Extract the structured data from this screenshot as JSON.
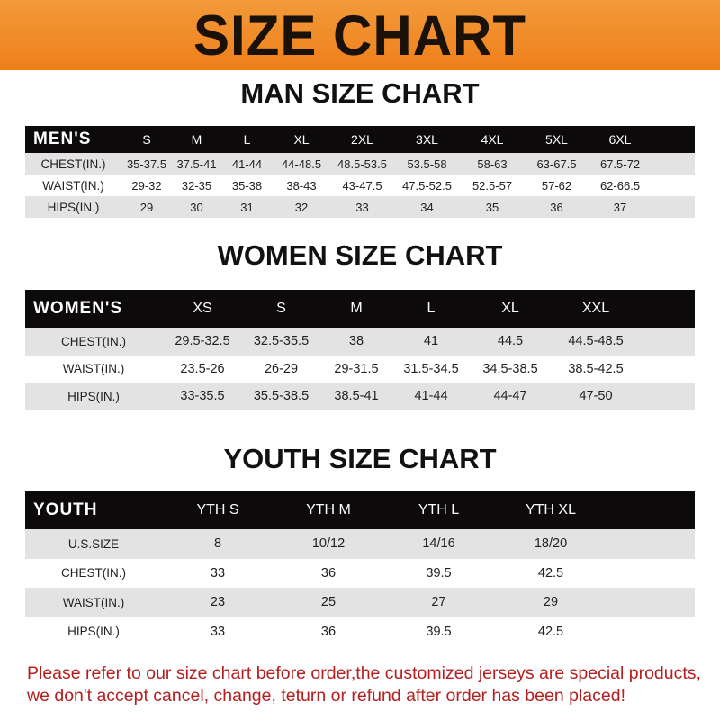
{
  "banner": "SIZE CHART",
  "man": {
    "title": "MAN SIZE CHART",
    "header": [
      "MEN'S",
      "S",
      "M",
      "L",
      "XL",
      "2XL",
      "3XL",
      "4XL",
      "5XL",
      "6XL"
    ],
    "rows": [
      [
        "CHEST(IN.)",
        "35-37.5",
        "37.5-41",
        "41-44",
        "44-48.5",
        "48.5-53.5",
        "53.5-58",
        "58-63",
        "63-67.5",
        "67.5-72"
      ],
      [
        "WAIST(IN.)",
        "29-32",
        "32-35",
        "35-38",
        "38-43",
        "43-47.5",
        "47.5-52.5",
        "52.5-57",
        "57-62",
        "62-66.5"
      ],
      [
        "HIPS(IN.)",
        "29",
        "30",
        "31",
        "32",
        "33",
        "34",
        "35",
        "36",
        "37"
      ]
    ]
  },
  "women": {
    "title": "WOMEN SIZE CHART",
    "header": [
      "WOMEN'S",
      "XS",
      "S",
      "M",
      "L",
      "XL",
      "XXL"
    ],
    "rows": [
      [
        "CHEST(IN.)",
        "29.5-32.5",
        "32.5-35.5",
        "38",
        "41",
        "44.5",
        "44.5-48.5"
      ],
      [
        "WAIST(IN.)",
        "23.5-26",
        "26-29",
        "29-31.5",
        "31.5-34.5",
        "34.5-38.5",
        "38.5-42.5"
      ],
      [
        "HIPS(IN.)",
        "33-35.5",
        "35.5-38.5",
        "38.5-41",
        "41-44",
        "44-47",
        "47-50"
      ]
    ]
  },
  "youth": {
    "title": "YOUTH SIZE CHART",
    "header": [
      "YOUTH",
      "YTH S",
      "YTH M",
      "YTH L",
      "YTH XL"
    ],
    "rows": [
      [
        "U.S.SIZE",
        "8",
        "10/12",
        "14/16",
        "18/20"
      ],
      [
        "CHEST(IN.)",
        "33",
        "36",
        "39.5",
        "42.5"
      ],
      [
        "WAIST(IN.)",
        "23",
        "25",
        "27",
        "29"
      ],
      [
        "HIPS(IN.)",
        "33",
        "36",
        "39.5",
        "42.5"
      ]
    ]
  },
  "note": [
    "Please refer to our size chart before order,the customized jerseys are special products,",
    "we don't accept cancel, change, teturn or refund after order has been placed!"
  ]
}
